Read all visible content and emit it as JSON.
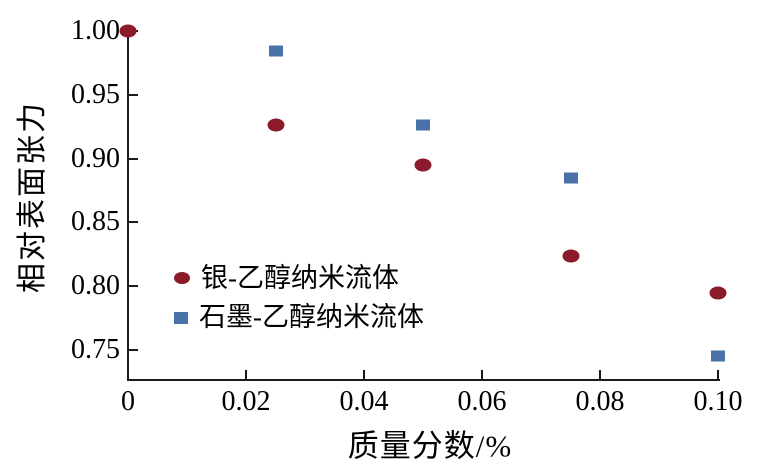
{
  "chart_data": {
    "type": "scatter",
    "title": "",
    "xlabel": "质量分数/%",
    "ylabel": "相对表面张力",
    "xlim": [
      0,
      0.1
    ],
    "ylim": [
      0.7265,
      1.0
    ],
    "x_ticks": [
      0,
      0.02,
      0.04,
      0.06,
      0.08,
      0.1
    ],
    "x_tick_labels": [
      "0",
      "0.02",
      "0.04",
      "0.06",
      "0.08",
      "0.10"
    ],
    "y_ticks": [
      1.0,
      0.95,
      0.9,
      0.85,
      0.8,
      0.75
    ],
    "y_tick_labels": [
      "1.00",
      "0.95",
      "0.90",
      "0.85",
      "0.80",
      "0.75"
    ],
    "grid": false,
    "legend_position": "inside-lower-left",
    "series": [
      {
        "name": "银-乙醇纳米流体",
        "marker": "circle",
        "color": "#8B1A2B",
        "points": [
          [
            0,
            1.0
          ],
          [
            0.025,
            0.926
          ],
          [
            0.05,
            0.895
          ],
          [
            0.075,
            0.824
          ],
          [
            0.1,
            0.795
          ]
        ]
      },
      {
        "name": "石墨-乙醇纳米流体",
        "marker": "square",
        "color": "#4A72A8",
        "points": [
          [
            0.025,
            0.984
          ],
          [
            0.05,
            0.926
          ],
          [
            0.075,
            0.885
          ],
          [
            0.1,
            0.745
          ]
        ]
      }
    ]
  },
  "colors": {
    "axis": "#1a1a1a",
    "text": "#000000",
    "background": "#ffffff"
  }
}
